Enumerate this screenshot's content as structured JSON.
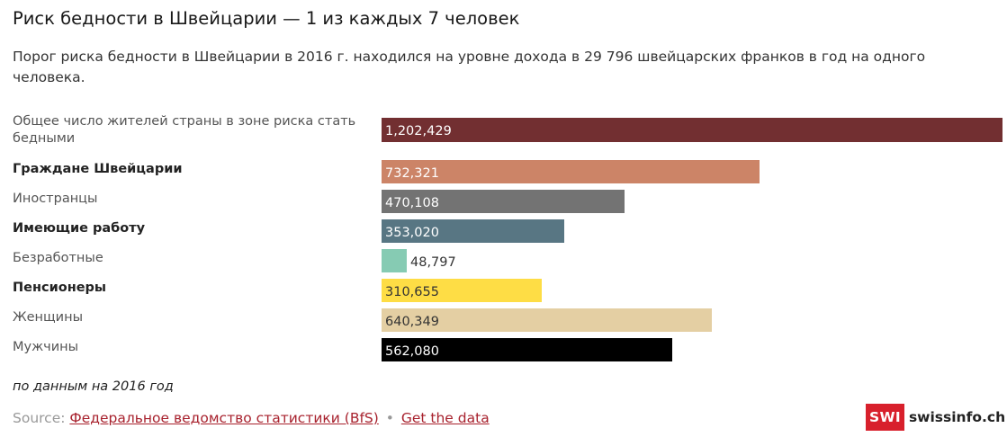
{
  "title": "Риск бедности в Швейцарии — 1 из каждых 7 человек",
  "subtitle": "Порог риска бедности в Швейцарии в 2016 г. находился на уровне дохода в 29 796 швейцарских франков в год на одного человека.",
  "chart_data": {
    "type": "bar",
    "orientation": "horizontal",
    "categories": [
      "Общее число жителей страны в зоне риска стать бедными",
      "Граждане Швейцарии",
      "Иностранцы",
      "Имеющие работу",
      "Безработные",
      "Пенсионеры",
      "Женщины",
      "Мужчины"
    ],
    "bold_categories": [
      false,
      true,
      false,
      true,
      false,
      true,
      false,
      false
    ],
    "values": [
      1202429,
      732321,
      470108,
      353020,
      48797,
      310655,
      640349,
      562080
    ],
    "value_labels": [
      "1,202,429",
      "732,321",
      "470,108",
      "353,020",
      "48,797",
      "310,655",
      "640,349",
      "562,080"
    ],
    "colors": [
      "#722f31",
      "#cc8467",
      "#737373",
      "#587683",
      "#86cbb3",
      "#fedd45",
      "#e4cfa3",
      "#000000"
    ],
    "label_colors": [
      "#ffffff",
      "#ffffff",
      "#ffffff",
      "#ffffff",
      "#333333",
      "#333333",
      "#333333",
      "#ffffff"
    ],
    "xlim": [
      0,
      1202429
    ],
    "grid": false
  },
  "note": "по данным на 2016 год",
  "source": {
    "prefix": "Source:",
    "link_text": "Федеральное ведомство статистики (BfS)",
    "separator": "•",
    "data_link": "Get the data"
  },
  "logo": {
    "badge": "SWI",
    "name": "swissinfo.ch"
  }
}
